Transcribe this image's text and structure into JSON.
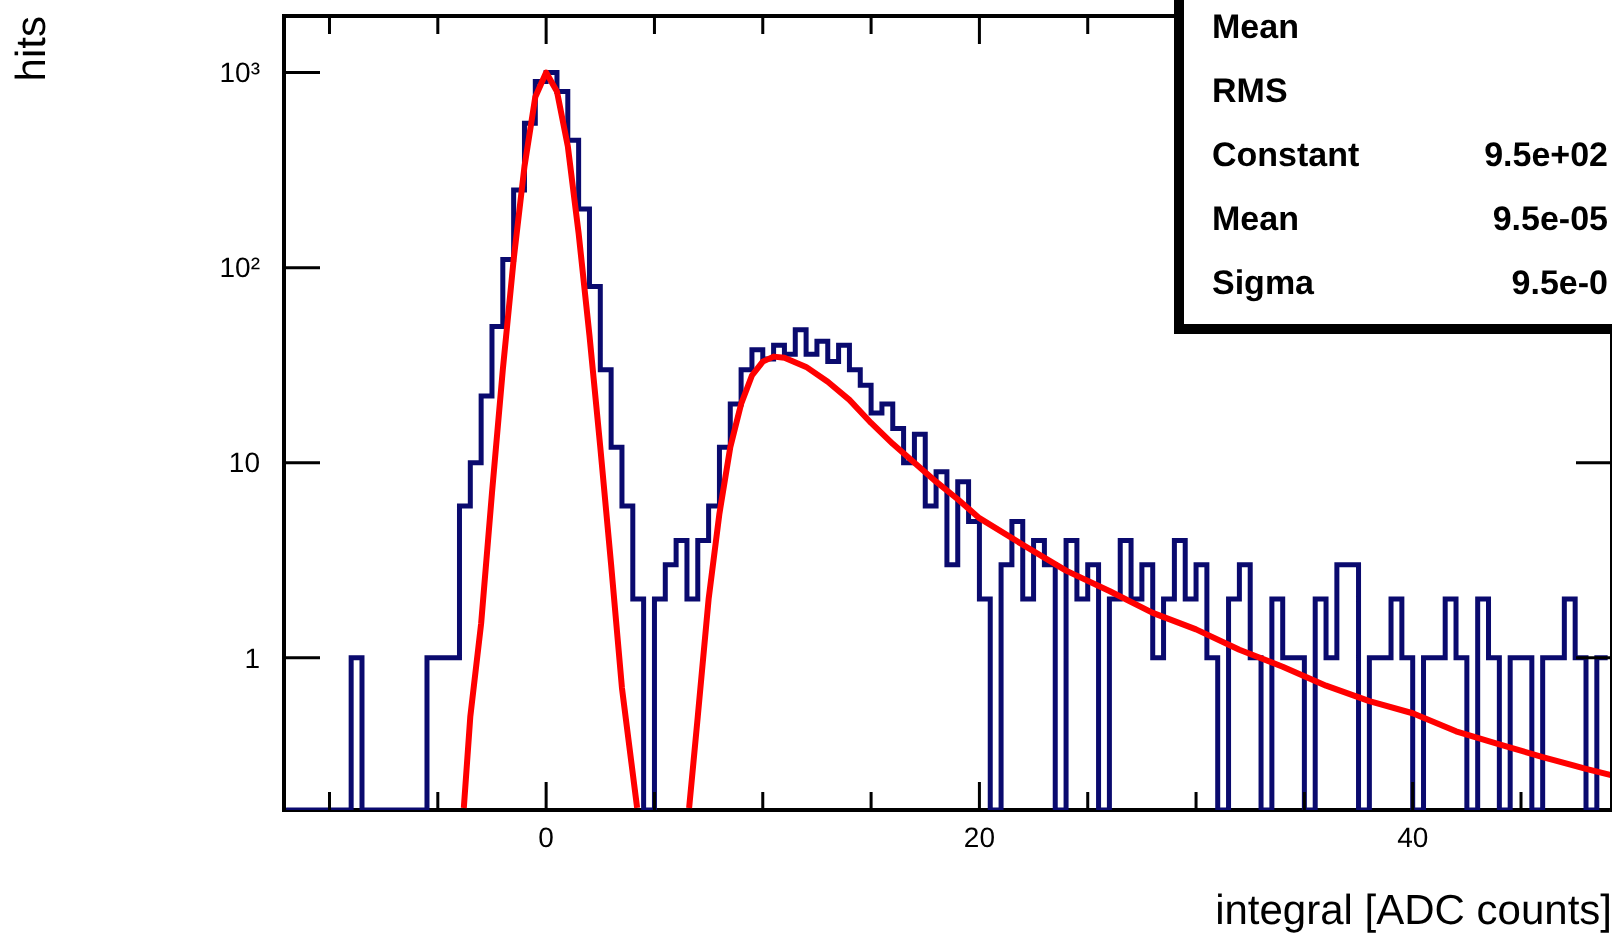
{
  "chart_data": {
    "type": "histogram",
    "xlabel": "integral [ADC counts]",
    "ylabel": "hits",
    "log": "y",
    "grid": false,
    "legend": false,
    "xlim": [
      -12.1,
      49.2
    ],
    "xticks": [
      {
        "value": -10,
        "label": null
      },
      {
        "value": -5,
        "label": null
      },
      0,
      {
        "value": 5,
        "label": null
      },
      {
        "value": 10,
        "label": null
      },
      {
        "value": 15,
        "label": null
      },
      20,
      {
        "value": 25,
        "label": null
      },
      {
        "value": 30,
        "label": null
      },
      {
        "value": 35,
        "label": null
      },
      40,
      {
        "value": 45,
        "label": null
      }
    ],
    "ylim": [
      0.166,
      1950
    ],
    "yticks": [
      1,
      10,
      {
        "value": 100,
        "label": "10²"
      },
      {
        "value": 1000,
        "label": "10³"
      }
    ],
    "annotations": [
      "Mean",
      "RMS",
      "Constant  9.5e+02",
      "Mean  9.5e-05",
      "Sigma  9.5e-0"
    ],
    "series": [
      {
        "color": "#0a0a6e",
        "bins": [
          -12,
          -11.5,
          -11,
          -10.5,
          -10,
          -9.5,
          -9,
          -8.5,
          -8,
          -7.5,
          -7,
          -6.5,
          -6,
          -5.5,
          -5,
          -4.5,
          -4,
          -3.5,
          -3,
          -2.5,
          -2,
          -1.5,
          -1,
          -0.5,
          0,
          0.5,
          1,
          1.5,
          2,
          2.5,
          3,
          3.5,
          4,
          4.5,
          5,
          5.5,
          6,
          6.5,
          7,
          7.5,
          8,
          8.5,
          9,
          9.5,
          10,
          10.5,
          11,
          11.5,
          12,
          12.5,
          13,
          13.5,
          14,
          14.5,
          15,
          15.5,
          16,
          16.5,
          17,
          17.5,
          18,
          18.5,
          19,
          19.5,
          20,
          20.5,
          21,
          21.5,
          22,
          22.5,
          23,
          23.5,
          24,
          24.5,
          25,
          25.5,
          26,
          26.5,
          27,
          27.5,
          28,
          28.5,
          29,
          29.5,
          30,
          30.5,
          31,
          31.5,
          32,
          32.5,
          33,
          33.5,
          34,
          34.5,
          35,
          35.5,
          36,
          36.5,
          37,
          37.5,
          38,
          38.5,
          39,
          39.5,
          40,
          40.5,
          41,
          41.5,
          42,
          42.5,
          43,
          43.5,
          44,
          44.5,
          45,
          45.5,
          46,
          46.5,
          47,
          47.5,
          48,
          48.5,
          49
        ],
        "values": [
          null,
          null,
          null,
          null,
          null,
          null,
          1,
          null,
          null,
          null,
          null,
          null,
          null,
          1,
          1,
          1,
          6,
          10,
          22,
          50,
          110,
          250,
          550,
          900,
          1000,
          800,
          450,
          200,
          80,
          30,
          12,
          6,
          2,
          null,
          2,
          3,
          4,
          2,
          4,
          6,
          12,
          20,
          30,
          38,
          34,
          40,
          36,
          48,
          36,
          42,
          33,
          40,
          30,
          25,
          18,
          20,
          15,
          10,
          14,
          6,
          9,
          3,
          8,
          5,
          2,
          null,
          3,
          5,
          2,
          4,
          3,
          null,
          4,
          2,
          3,
          null,
          2,
          4,
          2,
          3,
          1,
          2,
          4,
          2,
          3,
          1,
          null,
          2,
          3,
          1,
          null,
          2,
          1,
          1,
          null,
          2,
          1,
          3,
          3,
          null,
          1,
          1,
          2,
          1,
          null,
          1,
          1,
          2,
          1,
          null,
          2,
          1,
          null,
          1,
          1,
          null,
          1,
          1,
          2,
          1,
          null,
          1
        ]
      },
      {
        "type": "line",
        "color": "#ff0000",
        "x": [
          -3.8,
          -3.5,
          -3,
          -2.5,
          -2,
          -1.5,
          -1,
          -0.5,
          0,
          0.5,
          1,
          1.5,
          2,
          2.5,
          3,
          3.5,
          4.2
        ],
        "values": [
          0.17,
          0.5,
          1.5,
          7,
          30,
          110,
          330,
          750,
          1000,
          800,
          420,
          150,
          45,
          12,
          3,
          0.7,
          0.17
        ]
      },
      {
        "type": "line",
        "color": "#ff0000",
        "x": [
          6.6,
          7,
          7.5,
          8,
          8.5,
          9,
          9.5,
          10,
          10.5,
          11,
          12,
          13,
          14,
          15,
          16,
          17,
          18,
          19,
          20,
          22,
          24,
          26,
          28,
          30,
          32,
          34,
          36,
          38,
          40,
          42,
          44,
          46,
          48,
          49.2
        ],
        "values": [
          0.17,
          0.5,
          2,
          5.5,
          12,
          20,
          28,
          33,
          35,
          34.5,
          31,
          26,
          21,
          16,
          12.5,
          10,
          8,
          6.5,
          5.2,
          3.8,
          2.8,
          2.2,
          1.7,
          1.4,
          1.1,
          0.9,
          0.72,
          0.6,
          0.52,
          0.42,
          0.36,
          0.31,
          0.27,
          0.25
        ]
      }
    ]
  }
}
